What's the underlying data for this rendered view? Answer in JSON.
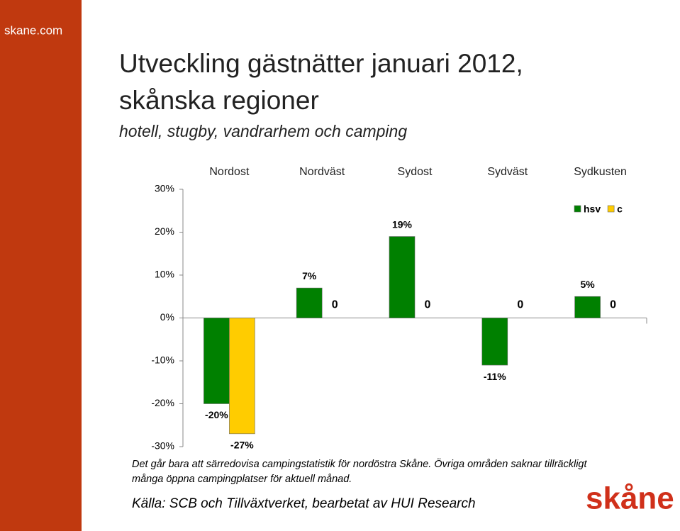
{
  "site": "skane.com",
  "logo": "skåne",
  "chart_data": {
    "type": "bar",
    "title": [
      "Utveckling gästnätter januari 2012,",
      "skånska regioner"
    ],
    "subtitle": "hotell, stugby, vandrarhem och camping",
    "categories": [
      "Nordost",
      "Nordväst",
      "Sydost",
      "Sydväst",
      "Sydkusten"
    ],
    "series": [
      {
        "name": "hsv",
        "color": "#008000",
        "values": [
          -20,
          7,
          19,
          -11,
          5
        ],
        "value_labels": [
          "-20%",
          "7%",
          "19%",
          "-11%",
          "5%"
        ]
      },
      {
        "name": "c",
        "color": "#ffcc00",
        "values": [
          -27,
          0,
          0,
          0,
          0
        ],
        "value_labels": [
          "-27%",
          "0",
          "0",
          "0",
          "0"
        ]
      }
    ],
    "ylim": [
      -30,
      30
    ],
    "yticks": [
      {
        "value": 30,
        "label": "30%"
      },
      {
        "value": 20,
        "label": "20%"
      },
      {
        "value": 10,
        "label": "10%"
      },
      {
        "value": 0,
        "label": "0%"
      },
      {
        "value": -10,
        "label": "-10%"
      },
      {
        "value": -20,
        "label": "-20%"
      },
      {
        "value": -30,
        "label": "-30%"
      }
    ],
    "legend": "top-right",
    "note": [
      "Det går bara att särredovisa campingstatistik för nordöstra Skåne. Övriga områden saknar tillräckligt",
      "många öppna campingplatser för aktuell månad."
    ],
    "source": "Källa: SCB och Tillväxtverket, bearbetat av HUI Research"
  }
}
